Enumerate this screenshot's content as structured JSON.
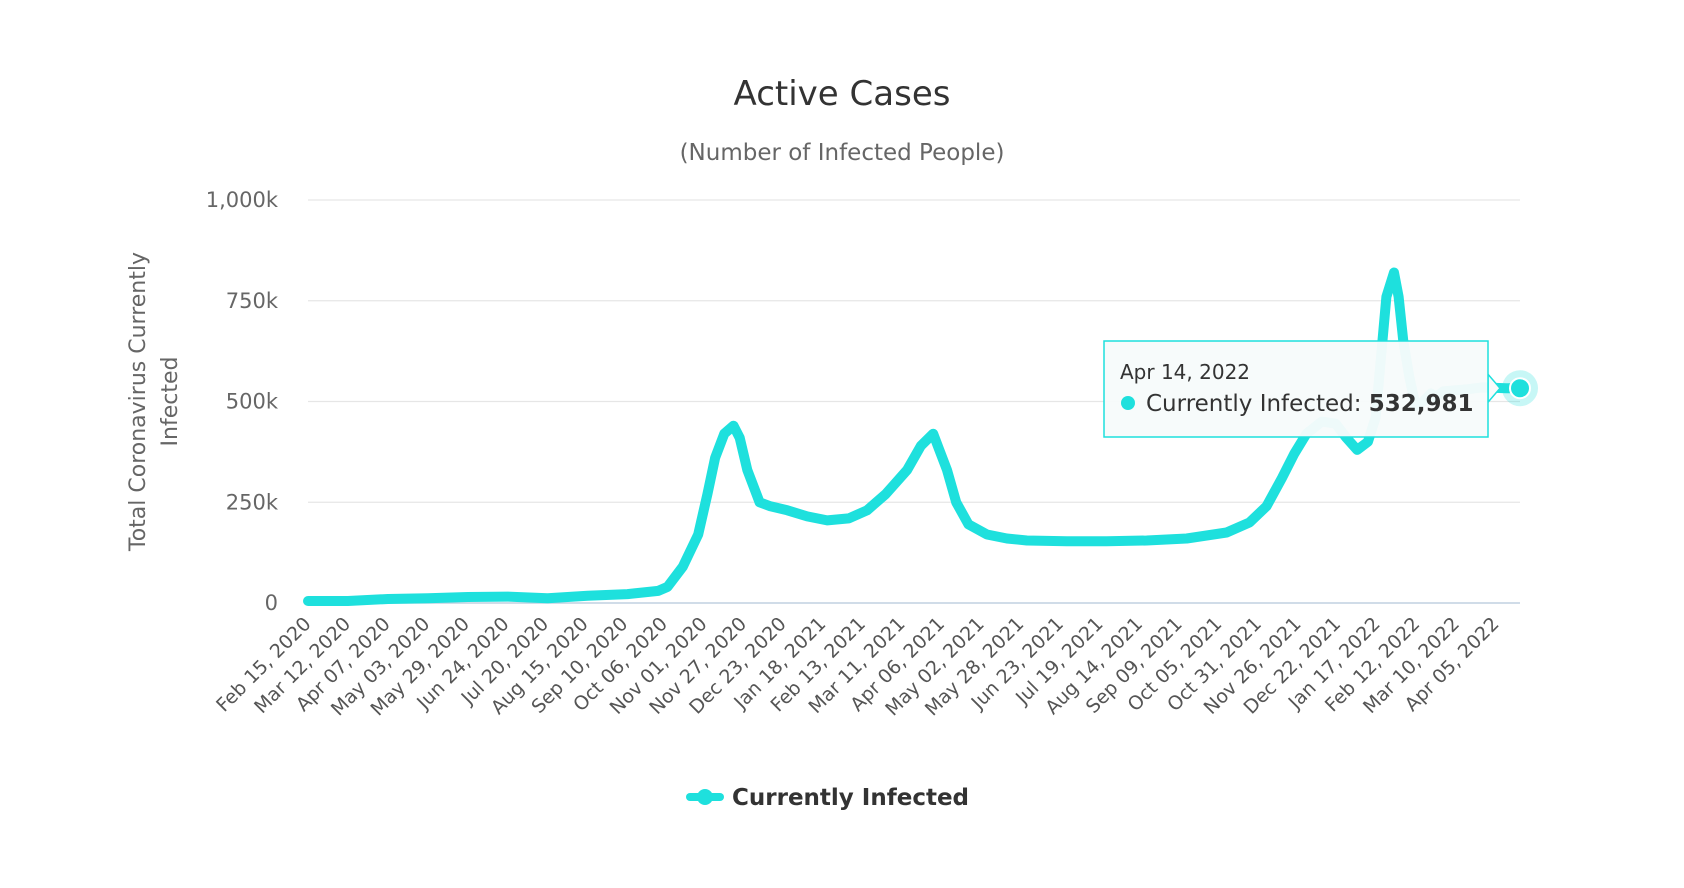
{
  "chart_data": {
    "type": "line",
    "title": "Active Cases",
    "subtitle": "(Number of Infected People)",
    "ylabel": "Total Coronavirus Currently Infected",
    "ylabel_lines": [
      "Total Coronavirus Currently",
      "Infected"
    ],
    "xlabel": "",
    "ylim": [
      0,
      1000000
    ],
    "ytick_labels": [
      "0",
      "250k",
      "500k",
      "750k",
      "1,000k"
    ],
    "ytick_values": [
      0,
      250000,
      500000,
      750000,
      1000000
    ],
    "grid": true,
    "legend_position": "bottom-center",
    "x_range": [
      "2020-02-15",
      "2022-04-14"
    ],
    "categories": [
      "Feb 15, 2020",
      "Mar 12, 2020",
      "Apr 07, 2020",
      "May 03, 2020",
      "May 29, 2020",
      "Jun 24, 2020",
      "Jul 20, 2020",
      "Aug 15, 2020",
      "Sep 10, 2020",
      "Oct 06, 2020",
      "Nov 01, 2020",
      "Nov 27, 2020",
      "Dec 23, 2020",
      "Jan 18, 2021",
      "Feb 13, 2021",
      "Mar 11, 2021",
      "Apr 06, 2021",
      "May 02, 2021",
      "May 28, 2021",
      "Jun 23, 2021",
      "Jul 19, 2021",
      "Aug 14, 2021",
      "Sep 09, 2021",
      "Oct 05, 2021",
      "Oct 31, 2021",
      "Nov 26, 2021",
      "Dec 22, 2021",
      "Jan 17, 2022",
      "Feb 12, 2022",
      "Mar 10, 2022",
      "Apr 05, 2022"
    ],
    "series": [
      {
        "name": "Currently Infected",
        "color": "#1ee0dd",
        "x": [
          "2020-02-15",
          "2020-03-12",
          "2020-04-07",
          "2020-05-03",
          "2020-05-29",
          "2020-06-24",
          "2020-07-20",
          "2020-08-15",
          "2020-09-10",
          "2020-09-30",
          "2020-10-06",
          "2020-10-16",
          "2020-10-26",
          "2020-11-01",
          "2020-11-06",
          "2020-11-12",
          "2020-11-18",
          "2020-11-22",
          "2020-11-27",
          "2020-12-05",
          "2020-12-12",
          "2020-12-23",
          "2021-01-05",
          "2021-01-18",
          "2021-02-01",
          "2021-02-13",
          "2021-02-25",
          "2021-03-11",
          "2021-03-20",
          "2021-03-28",
          "2021-04-01",
          "2021-04-06",
          "2021-04-12",
          "2021-04-20",
          "2021-05-02",
          "2021-05-15",
          "2021-05-28",
          "2021-06-10",
          "2021-06-23",
          "2021-07-19",
          "2021-08-14",
          "2021-09-09",
          "2021-10-05",
          "2021-10-20",
          "2021-10-31",
          "2021-11-10",
          "2021-11-18",
          "2021-11-26",
          "2021-12-06",
          "2021-12-15",
          "2021-12-22",
          "2021-12-29",
          "2022-01-05",
          "2022-01-10",
          "2022-01-17",
          "2022-01-22",
          "2022-01-25",
          "2022-01-28",
          "2022-02-01",
          "2022-02-05",
          "2022-02-10",
          "2022-02-15",
          "2022-02-18",
          "2022-02-23",
          "2022-03-10",
          "2022-03-20",
          "2022-04-05",
          "2022-04-14"
        ],
        "y": [
          5000,
          5000,
          10000,
          12000,
          15000,
          16000,
          12000,
          18000,
          22000,
          30000,
          40000,
          90000,
          170000,
          270000,
          360000,
          420000,
          440000,
          410000,
          330000,
          250000,
          240000,
          230000,
          215000,
          205000,
          210000,
          230000,
          270000,
          330000,
          390000,
          420000,
          380000,
          330000,
          250000,
          195000,
          170000,
          160000,
          155000,
          154000,
          153000,
          153000,
          155000,
          160000,
          175000,
          200000,
          240000,
          310000,
          370000,
          420000,
          450000,
          445000,
          410000,
          380000,
          400000,
          460000,
          760000,
          820000,
          760000,
          650000,
          560000,
          490000,
          500000,
          520000,
          510000,
          525000,
          530000,
          535000,
          533000,
          532981
        ]
      }
    ]
  },
  "legend": {
    "label": "Currently Infected"
  },
  "tooltip": {
    "date": "Apr 14, 2022",
    "label": "Currently Infected:",
    "value": "532,981"
  },
  "colors": {
    "series": "#1ee0dd",
    "grid": "#e6e6e6",
    "axis": "#c0d0e0",
    "tooltip_border": "#1ee0dd"
  }
}
